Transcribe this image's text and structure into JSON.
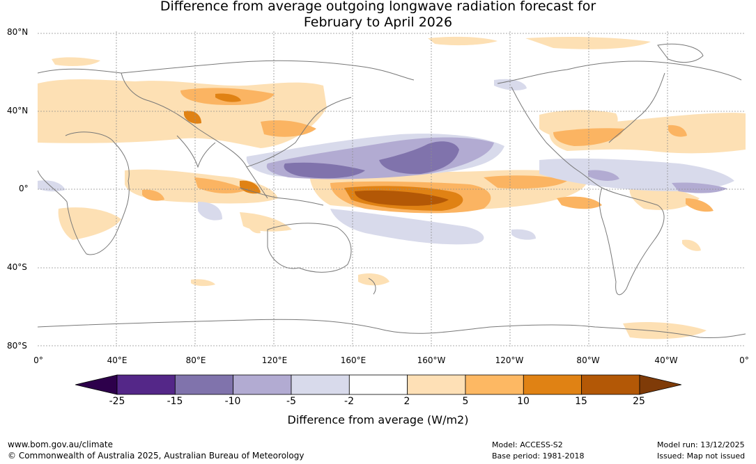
{
  "title": {
    "line1": "Difference from average outgoing longwave radiation forecast for",
    "line2": "February to April 2026"
  },
  "map": {
    "lat_labels": [
      "80°N",
      "40°N",
      "0°",
      "40°S",
      "80°S"
    ],
    "lon_labels": [
      "0°",
      "40°E",
      "80°E",
      "120°E",
      "160°E",
      "160°W",
      "120°W",
      "80°W",
      "40°W",
      "0°"
    ],
    "colors": {
      "land_outline": "#808080",
      "grid": "#909090",
      "pos_2_5": "#fde0b4",
      "pos_5_10": "#fbb462",
      "pos_10_15": "#e08214",
      "pos_15_25": "#b35806",
      "neg_2_5": "#d8daeb",
      "neg_5_10": "#b2abd2",
      "neg_10_15": "#8073ac"
    }
  },
  "colorbar": {
    "label": "Difference from average (W/m2)",
    "ticks": [
      "-25",
      "-15",
      "-10",
      "-5",
      "-2",
      "2",
      "5",
      "10",
      "15",
      "25"
    ],
    "colors": [
      "#2d004b",
      "#542788",
      "#8073ac",
      "#b2abd2",
      "#d8daeb",
      "#ffffff",
      "#fee0b6",
      "#fdb863",
      "#e08214",
      "#b35806",
      "#7f3b08"
    ]
  },
  "footer": {
    "url": "www.bom.gov.au/climate",
    "copyright": "© Commonwealth of Australia 2025, Australian Bureau of Meteorology",
    "model": "Model: ACCESS-S2",
    "base_period": "Base period: 1981-2018",
    "model_run": "Model run: 13/12/2025",
    "issued": "Issued: Map not issued"
  }
}
